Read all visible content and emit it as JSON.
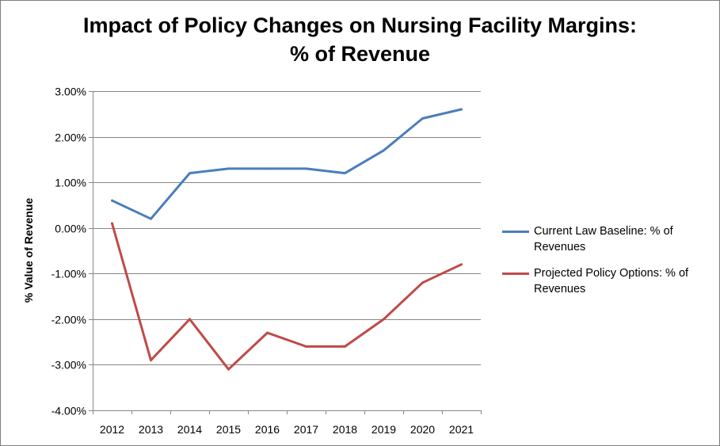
{
  "chart_data": {
    "type": "line",
    "title_line1": "Impact of Policy Changes on Nursing Facility Margins:",
    "title_line2": "% of Revenue",
    "xlabel": "",
    "ylabel": "% Value of Revenue",
    "categories": [
      "2012",
      "2013",
      "2014",
      "2015",
      "2016",
      "2017",
      "2018",
      "2019",
      "2020",
      "2021"
    ],
    "ylim": [
      -4,
      3
    ],
    "yticks": [
      3,
      2,
      1,
      0,
      -1,
      -2,
      -3,
      -4
    ],
    "ytick_labels": [
      "3.00%",
      "2.00%",
      "1.00%",
      "0.00%",
      "-1.00%",
      "-2.00%",
      "-3.00%",
      "-4.00%"
    ],
    "grid": true,
    "legend_position": "right",
    "series": [
      {
        "name": "Current Law Baseline: % of Revenues",
        "color": "#4a7ebb",
        "values": [
          0.6,
          0.2,
          1.2,
          1.3,
          1.3,
          1.3,
          1.2,
          1.7,
          2.4,
          2.6
        ]
      },
      {
        "name": "Projected Policy Options: % of Revenues",
        "color": "#be4b48",
        "values": [
          0.1,
          -2.9,
          -2.0,
          -3.1,
          -2.3,
          -2.6,
          -2.6,
          -2.0,
          -1.2,
          -0.8
        ]
      }
    ]
  }
}
